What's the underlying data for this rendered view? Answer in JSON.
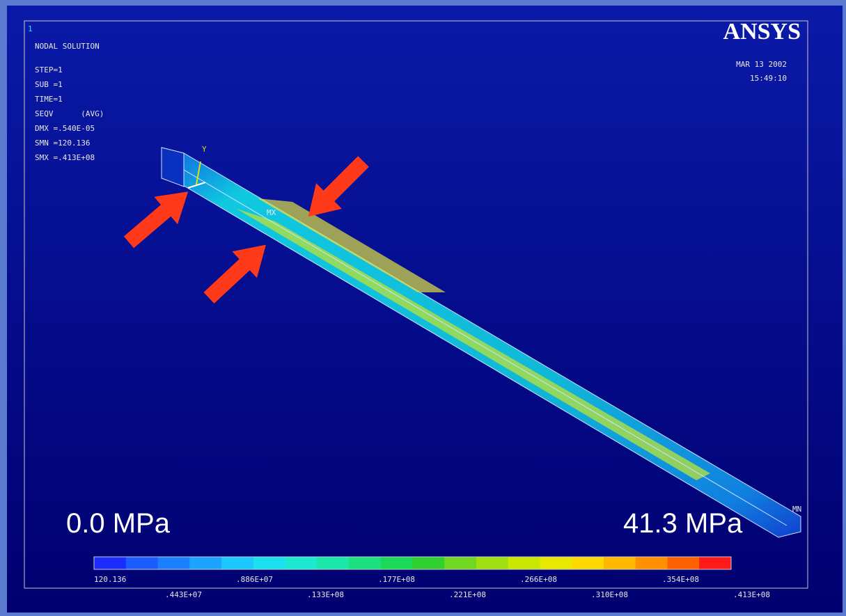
{
  "header": {
    "window_number": "1",
    "title": "NODAL SOLUTION",
    "info": [
      "STEP=1",
      "SUB =1",
      "TIME=1",
      "SEQV      (AVG)",
      "DMX =.540E-05",
      "SMN =120.136",
      "SMX =.413E+08"
    ],
    "logo": "ANSYS",
    "date": "MAR 13 2002",
    "time": "15:49:10"
  },
  "model": {
    "axis_label": "Y",
    "max_marker": "MX",
    "min_marker": "MN"
  },
  "annotations": {
    "min_label": "0.0 MPa",
    "max_label": "41.3 MPa"
  },
  "legend": {
    "labels": [
      "120.136",
      ".443E+07",
      ".886E+07",
      ".133E+08",
      ".177E+08",
      ".221E+08",
      ".266E+08",
      ".310E+08",
      ".354E+08",
      ".413E+08"
    ]
  }
}
